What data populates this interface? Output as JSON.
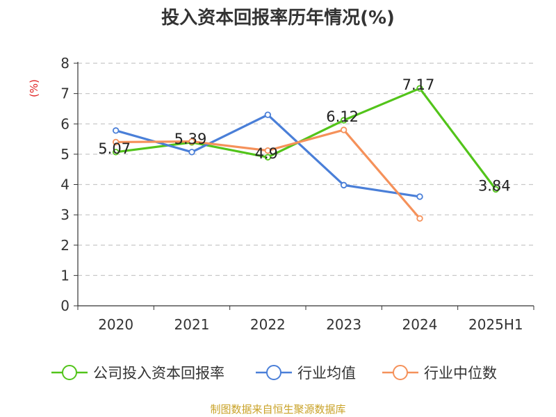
{
  "page": {
    "title": "投入资本回报率历年情况(%)",
    "footer": "制图数据来自恒生聚源数据库"
  },
  "chart_data": {
    "type": "line",
    "title": "投入资本回报率历年情况(%)",
    "ylabel": "(%)",
    "categories": [
      "2020",
      "2021",
      "2022",
      "2023",
      "2024",
      "2025H1"
    ],
    "ylim": [
      0,
      8
    ],
    "yticks": [
      0,
      1,
      2,
      3,
      4,
      5,
      6,
      7,
      8
    ],
    "grid": true,
    "legend_position": "bottom",
    "series": [
      {
        "name": "公司投入资本回报率",
        "color": "#52c41a",
        "values": [
          5.07,
          5.39,
          4.9,
          6.12,
          7.17,
          3.84
        ],
        "labels": [
          "5.07",
          "5.39",
          "4.9",
          "6.12",
          "7.17",
          "3.84"
        ]
      },
      {
        "name": "行业均值",
        "color": "#4a7fd8",
        "values": [
          5.78,
          5.07,
          6.3,
          3.98,
          3.6,
          null
        ]
      },
      {
        "name": "行业中位数",
        "color": "#f5915a",
        "values": [
          5.4,
          5.42,
          5.12,
          5.8,
          2.88,
          null
        ]
      }
    ]
  }
}
